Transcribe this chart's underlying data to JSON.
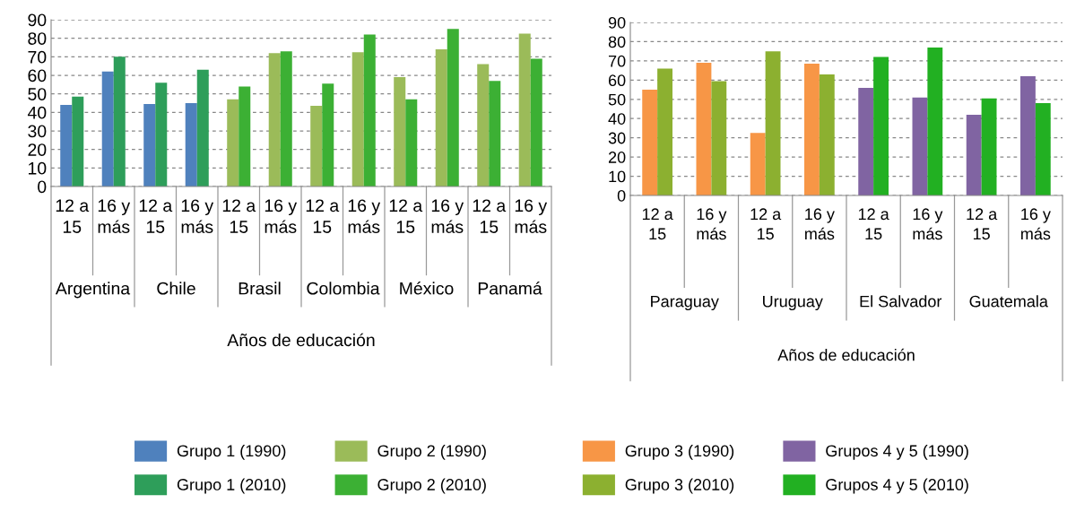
{
  "chart_data": [
    {
      "type": "bar",
      "xlabel": "Años de educación",
      "categories": [
        "12 a\n15",
        "16 y\nmás",
        "12 a\n15",
        "16 y\nmás",
        "12 a\n15",
        "16 y\nmás",
        "12 a\n15",
        "16 y\nmás",
        "12 a\n15",
        "16 y\nmás",
        "12 a\n15",
        "16 y\nmás"
      ],
      "annotations": [
        "Argentina",
        "Chile",
        "Brasil",
        "Colombia",
        "México",
        "Panamá"
      ],
      "series": [
        {
          "name": "Grupo 1 (1990)",
          "color": "#4f81bd",
          "values": [
            44,
            62,
            44.5,
            45,
            null,
            null,
            null,
            null,
            null,
            null,
            null,
            null
          ]
        },
        {
          "name": "Grupo 1 (2010)",
          "color": "#2e9e5a",
          "values": [
            48.5,
            70,
            56,
            63,
            null,
            null,
            null,
            null,
            null,
            null,
            null,
            null
          ]
        },
        {
          "name": "Grupo 2 (1990)",
          "color": "#9bbb59",
          "values": [
            null,
            null,
            null,
            null,
            47,
            72,
            43.5,
            72.5,
            59,
            74,
            66,
            82.5
          ]
        },
        {
          "name": "Grupo 2 (2010)",
          "color": "#3cb034",
          "values": [
            null,
            null,
            null,
            null,
            54,
            73,
            55.5,
            82,
            47,
            85,
            57,
            69
          ]
        }
      ],
      "ylim": [
        0,
        90
      ],
      "yticks": [
        0,
        10,
        20,
        30,
        40,
        50,
        60,
        70,
        80,
        90
      ],
      "grid": "y",
      "legend": "bottom"
    },
    {
      "type": "bar",
      "xlabel": "Años de educación",
      "categories": [
        "12 a\n15",
        "16 y\nmás",
        "12 a\n15",
        "16 y\nmás",
        "12 a\n15",
        "16 y\nmás",
        "12 a\n15",
        "16 y\nmás"
      ],
      "annotations": [
        "Paraguay",
        "Uruguay",
        "El Salvador",
        "Guatemala"
      ],
      "series": [
        {
          "name": "Grupo 3 (1990)",
          "color": "#f79646",
          "values": [
            55,
            69,
            32.5,
            68.5,
            null,
            null,
            null,
            null
          ]
        },
        {
          "name": "Grupo 3 (2010)",
          "color": "#8cb030",
          "values": [
            66,
            59.5,
            75,
            63,
            null,
            null,
            null,
            null
          ]
        },
        {
          "name": "Grupos 4 y 5 (1990)",
          "color": "#8064a2",
          "values": [
            null,
            null,
            null,
            null,
            56,
            51,
            42,
            62
          ]
        },
        {
          "name": "Grupos 4 y 5 (2010)",
          "color": "#22b022",
          "values": [
            null,
            null,
            null,
            null,
            72,
            77,
            50.5,
            48
          ]
        }
      ],
      "ylim": [
        0,
        90
      ],
      "yticks": [
        0,
        10,
        20,
        30,
        40,
        50,
        60,
        70,
        80,
        90
      ],
      "grid": "y",
      "legend": "bottom"
    }
  ]
}
